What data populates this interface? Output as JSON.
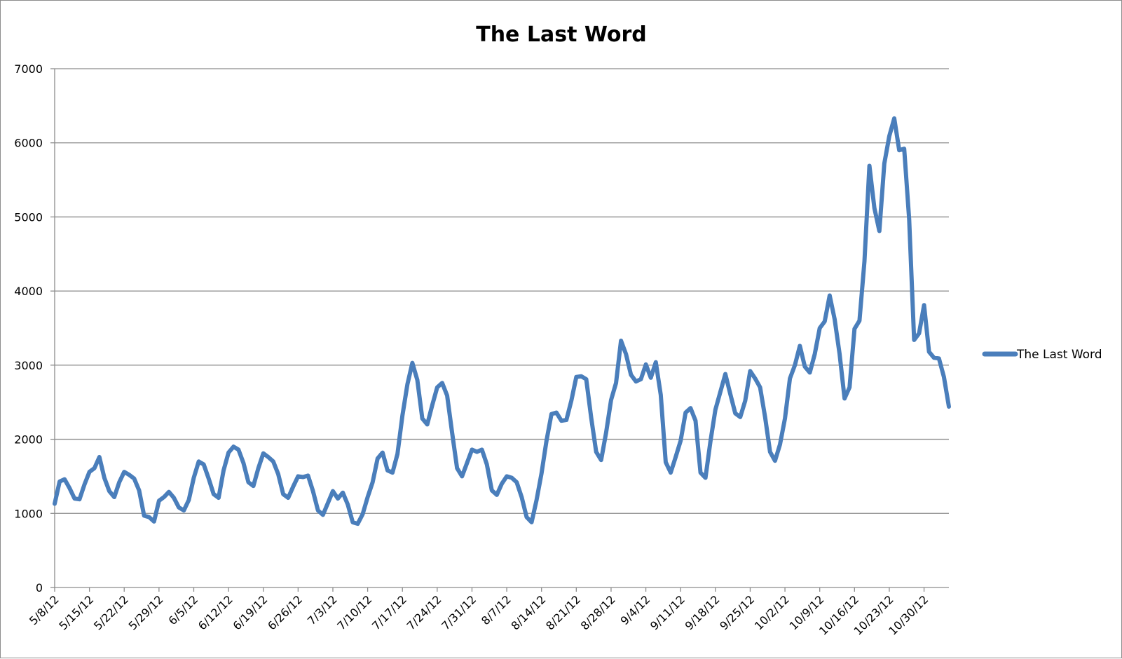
{
  "chart_data": {
    "type": "line",
    "title": "The Last Word",
    "xlabel": "",
    "ylabel": "",
    "ylim": [
      0,
      7000
    ],
    "yticks": [
      0,
      1000,
      2000,
      3000,
      4000,
      5000,
      6000,
      7000
    ],
    "grid": true,
    "legend": "right",
    "xtick_labels": [
      "5/8/12",
      "5/15/12",
      "5/22/12",
      "5/29/12",
      "6/5/12",
      "6/12/12",
      "6/19/12",
      "6/26/12",
      "7/3/12",
      "7/10/12",
      "7/17/12",
      "7/24/12",
      "7/31/12",
      "8/7/12",
      "8/14/12",
      "8/21/12",
      "8/28/12",
      "9/4/12",
      "9/11/12",
      "9/18/12",
      "9/25/12",
      "10/2/12",
      "10/9/12",
      "10/16/12",
      "10/23/12",
      "10/30/12"
    ],
    "series": [
      {
        "name": "The Last Word",
        "color": "#4a7ebb",
        "start_date": "5/8/12",
        "values": [
          1130,
          1430,
          1460,
          1340,
          1200,
          1190,
          1390,
          1560,
          1610,
          1760,
          1480,
          1300,
          1220,
          1420,
          1560,
          1520,
          1470,
          1310,
          970,
          950,
          890,
          1170,
          1220,
          1290,
          1210,
          1080,
          1040,
          1180,
          1480,
          1700,
          1660,
          1470,
          1260,
          1210,
          1580,
          1820,
          1900,
          1860,
          1680,
          1420,
          1370,
          1610,
          1810,
          1760,
          1700,
          1530,
          1260,
          1210,
          1360,
          1500,
          1490,
          1510,
          1300,
          1040,
          980,
          1140,
          1300,
          1200,
          1280,
          1120,
          880,
          860,
          990,
          1220,
          1420,
          1740,
          1820,
          1580,
          1550,
          1800,
          2320,
          2740,
          3030,
          2800,
          2280,
          2200,
          2460,
          2700,
          2760,
          2590,
          2090,
          1610,
          1500,
          1680,
          1860,
          1830,
          1860,
          1660,
          1310,
          1250,
          1400,
          1500,
          1480,
          1420,
          1220,
          950,
          880,
          1180,
          1540,
          1980,
          2340,
          2360,
          2250,
          2260,
          2520,
          2840,
          2850,
          2810,
          2290,
          1830,
          1720,
          2090,
          2530,
          2760,
          3330,
          3150,
          2870,
          2780,
          2810,
          3010,
          2830,
          3040,
          2600,
          1690,
          1550,
          1760,
          1980,
          2360,
          2420,
          2250,
          1550,
          1480,
          1970,
          2400,
          2640,
          2880,
          2610,
          2350,
          2300,
          2520,
          2920,
          2820,
          2700,
          2300,
          1830,
          1710,
          1930,
          2280,
          2820,
          3000,
          3260,
          2980,
          2900,
          3150,
          3500,
          3590,
          3940,
          3620,
          3150,
          2550,
          2700,
          3490,
          3600,
          4400,
          5690,
          5120,
          4810,
          5720,
          6090,
          6330,
          5900,
          5920,
          4970,
          3340,
          3430,
          3810,
          3180,
          3100,
          3090,
          2840,
          2440
        ]
      }
    ]
  }
}
